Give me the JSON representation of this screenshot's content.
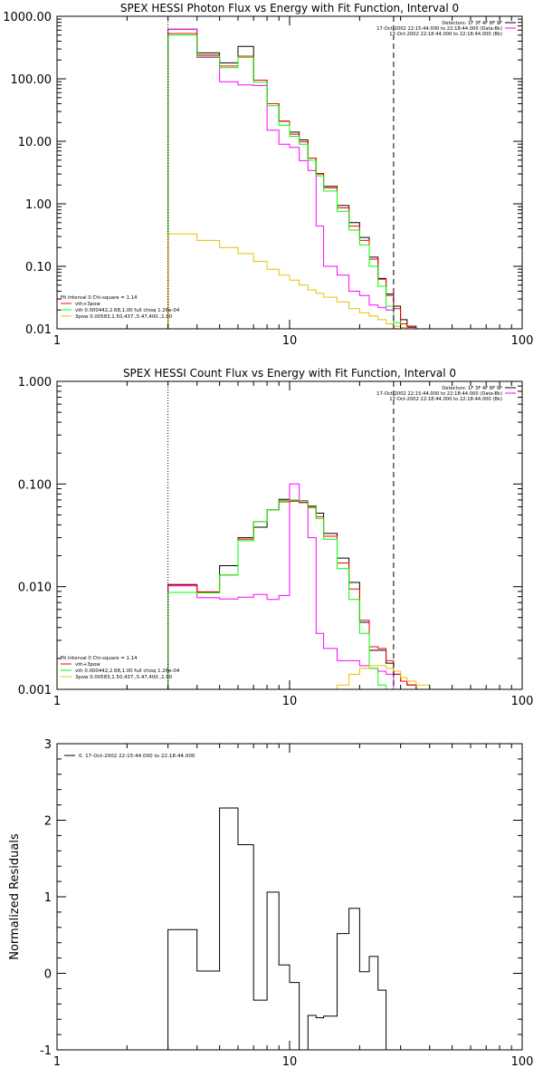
{
  "chart_data": [
    {
      "type": "line",
      "title": "SPEX HESSI Photon Flux vs Energy with Fit Function, Interval 0",
      "xscale": "log",
      "yscale": "log",
      "xlim": [
        1,
        100
      ],
      "ylim": [
        0.01,
        1000
      ],
      "x_ticks": [
        1,
        10,
        100
      ],
      "x_ticklabels": [
        "1",
        "10",
        "100"
      ],
      "y_ticks": [
        0.01,
        0.1,
        1,
        10,
        100,
        1000
      ],
      "y_ticklabels": [
        "0.01",
        "0.10",
        "1.00",
        "10.00",
        "100.00",
        "1000.00"
      ],
      "xlabel": "",
      "ylabel": "",
      "grid": false,
      "header": [
        "Detectors: 1F 3F 4F 8F 9F",
        "17-Oct-2002 22:15:44.000 to 22:18:44.000 (Data-Bk)",
        "17-Oct-2002 22:18:44.000 to 22:18:44.000 (Bk)"
      ],
      "legend_position": "bottom-left",
      "legend": [
        "Fit Interval 0   Chi-square = 1.14",
        "vth+3pow",
        "vth 0.000442,2.68,1.00   full chisq 1.26e-04",
        "3pow 0.00583,1.50,437.,5.47,400.,1.00"
      ],
      "vlines": [
        {
          "x": 3,
          "style": "dotted"
        },
        {
          "x": 28,
          "style": "dashed"
        }
      ],
      "bin_edges": [
        3,
        4,
        5,
        6,
        7,
        8,
        9,
        10,
        11,
        12,
        13,
        14,
        16,
        18,
        20,
        22,
        24,
        26,
        28,
        30,
        32,
        35
      ],
      "series": [
        {
          "name": "Data-Bk",
          "color": "#000000",
          "values": [
            620,
            260,
            180,
            330,
            95,
            40,
            21,
            14,
            10.5,
            5.4,
            3.05,
            1.9,
            0.94,
            0.5,
            0.29,
            0.14,
            0.064,
            0.036,
            0.023,
            0.014,
            0.011
          ]
        },
        {
          "name": "Bk",
          "color": "#ff00ff",
          "values": [
            620,
            220,
            90,
            80,
            78,
            15,
            9,
            8,
            4.9,
            3.4,
            0.44,
            0.1,
            0.072,
            0.04,
            0.034,
            0.024,
            0.022,
            0.02
          ]
        },
        {
          "name": "vth+3pow",
          "color": "#ff0000",
          "values": [
            530,
            240,
            160,
            230,
            95,
            40,
            21,
            13,
            9.8,
            5.4,
            3.0,
            1.8,
            0.86,
            0.44,
            0.26,
            0.13,
            0.062,
            0.034,
            0.021,
            0.012,
            0.0105
          ]
        },
        {
          "name": "vth",
          "color": "#00ff00",
          "values": [
            500,
            230,
            150,
            220,
            88,
            37,
            18,
            12,
            9,
            5.0,
            2.8,
            1.6,
            0.76,
            0.38,
            0.22,
            0.1,
            0.048,
            0.023,
            0.0125,
            0.0105
          ]
        },
        {
          "name": "3pow",
          "color": "#e8c000",
          "values": [
            0.33,
            0.26,
            0.2,
            0.16,
            0.12,
            0.09,
            0.072,
            0.06,
            0.05,
            0.042,
            0.037,
            0.032,
            0.027,
            0.021,
            0.018,
            0.016,
            0.014,
            0.012,
            0.011,
            0.0105
          ]
        }
      ]
    },
    {
      "type": "line",
      "title": "SPEX HESSI Count Flux vs Energy with Fit Function, Interval 0",
      "xscale": "log",
      "yscale": "log",
      "xlim": [
        1,
        100
      ],
      "ylim": [
        0.001,
        1
      ],
      "x_ticks": [
        1,
        10,
        100
      ],
      "x_ticklabels": [
        "1",
        "10",
        "100"
      ],
      "y_ticks": [
        0.001,
        0.01,
        0.1,
        1
      ],
      "y_ticklabels": [
        "0.001",
        "0.010",
        "0.100",
        "1.000"
      ],
      "xlabel": "",
      "ylabel": "",
      "grid": false,
      "header": [
        "Detectors: 1F 3F 4F 8F 9F",
        "17-Oct-2002 22:15:44.000 to 22:18:44.000 (Data-Bk)",
        "17-Oct-2002 22:18:44.000 to 22:18:44.000 (Bk)"
      ],
      "legend_position": "bottom-left",
      "legend": [
        "Fit Interval 0   Chi-square = 1.14",
        "vth+3pow",
        "vth 0.000442,2.68,1.00   full chisq 1.26e-04",
        "3pow 0.00583,1.50,437.,5.47,400.,1.00"
      ],
      "vlines": [
        {
          "x": 3,
          "style": "dotted"
        },
        {
          "x": 28,
          "style": "dashed"
        }
      ],
      "bin_edges": [
        3,
        4,
        5,
        6,
        7,
        8,
        9,
        10,
        11,
        12,
        13,
        14,
        16,
        18,
        20,
        22,
        24,
        26,
        28,
        30,
        32,
        35,
        40
      ],
      "series": [
        {
          "name": "Data-Bk",
          "color": "#000000",
          "values": [
            0.0105,
            0.0088,
            0.016,
            0.03,
            0.038,
            0.056,
            0.071,
            0.068,
            0.066,
            0.061,
            0.052,
            0.033,
            0.019,
            0.011,
            0.0045,
            0.0024,
            0.0024,
            0.0018,
            0.0014,
            0.0012,
            0.0011
          ]
        },
        {
          "name": "Bk",
          "color": "#ff00ff",
          "values": [
            0.0102,
            0.0078,
            0.0076,
            0.0079,
            0.0084,
            0.0075,
            0.0082,
            0.1,
            0.069,
            0.03,
            0.0035,
            0.0025,
            0.0019,
            0.0019,
            0.0017,
            0.0016,
            0.0015,
            0.0014
          ]
        },
        {
          "name": "vth+3pow",
          "color": "#ff0000",
          "values": [
            0.0104,
            0.0089,
            0.013,
            0.029,
            0.043,
            0.056,
            0.067,
            0.068,
            0.066,
            0.059,
            0.048,
            0.031,
            0.017,
            0.0095,
            0.0047,
            0.0026,
            0.0025,
            0.0019,
            0.0014,
            0.0012,
            0.0011
          ]
        },
        {
          "name": "vth",
          "color": "#00ff00",
          "values": [
            0.0088,
            0.0087,
            0.013,
            0.028,
            0.043,
            0.056,
            0.069,
            0.07,
            0.068,
            0.06,
            0.046,
            0.029,
            0.015,
            0.0075,
            0.0035,
            0.0016,
            0.0011
          ]
        },
        {
          "name": "3pow",
          "color": "#e8c000",
          "values": [
            0.0011,
            0.0014,
            0.0016,
            0.0017,
            0.0017,
            0.0016,
            0.0015,
            0.0013,
            0.0012,
            0.0011
          ]
        }
      ],
      "bin_edges_3pow": [
        16,
        18,
        20,
        22,
        24,
        26,
        28,
        30,
        32,
        35,
        40
      ]
    },
    {
      "type": "line",
      "title": "",
      "xscale": "log",
      "xlim": [
        1,
        100
      ],
      "ylim": [
        -1,
        3
      ],
      "x_ticks": [
        1,
        10,
        100
      ],
      "x_ticklabels": [
        "1",
        "10",
        "100"
      ],
      "y_ticks": [
        -1,
        0,
        1,
        2,
        3
      ],
      "y_ticklabels": [
        "-1",
        "0",
        "1",
        "2",
        "3"
      ],
      "xlabel": "",
      "ylabel": "Normalized Residuals",
      "grid": false,
      "legend_position": "top-left",
      "legend": [
        "0. 17-Oct-2002 22:15:44.000 to 22:18:44.000"
      ],
      "bin_edges": [
        3,
        4,
        5,
        6,
        7,
        8,
        9,
        10,
        11,
        12,
        13,
        14,
        16,
        18,
        20,
        22,
        24,
        26,
        28
      ],
      "series": [
        {
          "name": "0. 17-Oct-2002 22:15:44.000 to 22:18:44.000",
          "color": "#000000",
          "values": [
            0.57,
            0.03,
            2.16,
            1.68,
            -0.35,
            1.06,
            0.11,
            -0.12,
            -1.0,
            -0.55,
            -0.58,
            -0.56,
            0.52,
            0.85,
            0.02,
            0.22,
            -0.22
          ]
        }
      ]
    }
  ]
}
